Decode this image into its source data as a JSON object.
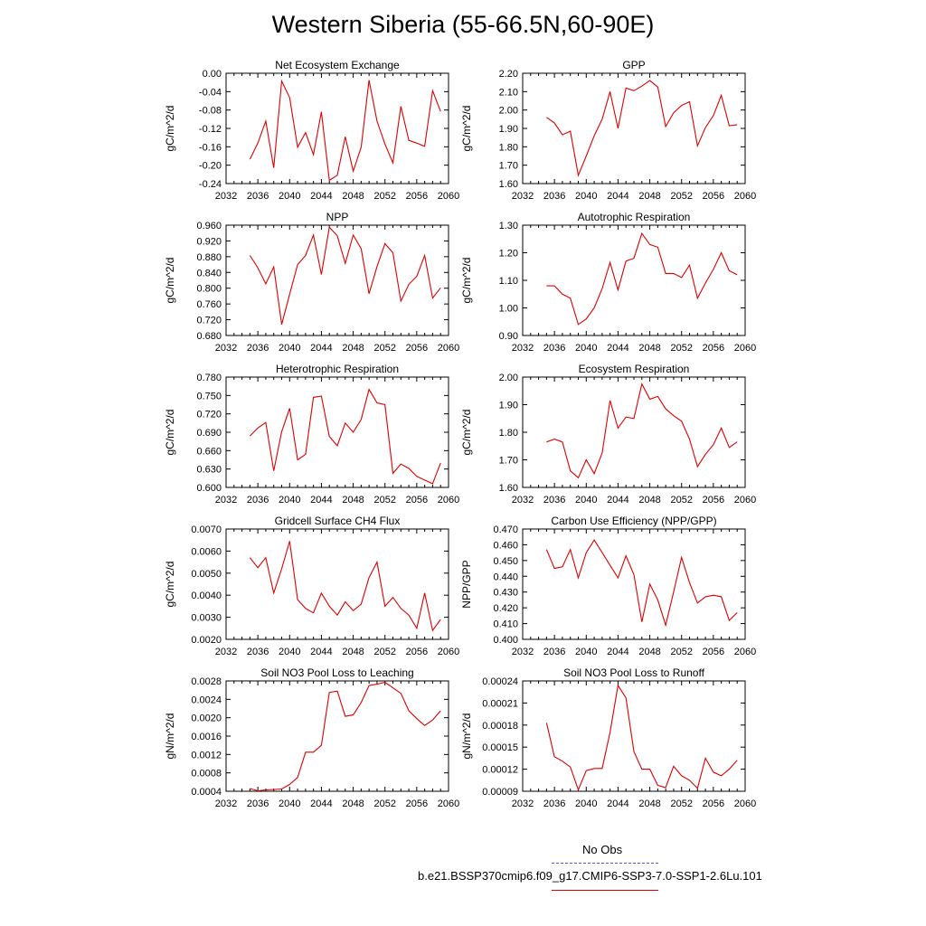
{
  "title": "Western Siberia (55-66.5N,60-90E)",
  "legend": {
    "obs_label": "No Obs",
    "obs_color": "#5555cc",
    "model_label": "b.e21.BSSP370cmip6.f09_g17.CMIP6-SSP3-7.0-SSP1-2.6Lu.101",
    "model_color": "#dd0000"
  },
  "chart_data": [
    {
      "type": "line",
      "title": "Net Ecosystem Exchange",
      "ylabel": "gC/m^2/d",
      "xlim": [
        2032,
        2060
      ],
      "ylim": [
        -0.24,
        0.0
      ],
      "yticks": [
        "0.00",
        "-0.04",
        "-0.08",
        "-0.12",
        "-0.16",
        "-0.20",
        "-0.24"
      ],
      "xticks": [
        "2032",
        "2036",
        "2040",
        "2044",
        "2048",
        "2052",
        "2056",
        "2060"
      ],
      "x": [
        2035,
        2036,
        2037,
        2038,
        2039,
        2040,
        2041,
        2042,
        2043,
        2044,
        2045,
        2046,
        2047,
        2048,
        2049,
        2050,
        2051,
        2052,
        2053,
        2054,
        2055,
        2056,
        2057,
        2058,
        2059
      ],
      "values": [
        -0.187,
        -0.152,
        -0.104,
        -0.206,
        -0.017,
        -0.053,
        -0.161,
        -0.129,
        -0.177,
        -0.084,
        -0.233,
        -0.222,
        -0.138,
        -0.213,
        -0.161,
        -0.015,
        -0.104,
        -0.154,
        -0.195,
        -0.072,
        -0.146,
        -0.152,
        -0.159,
        -0.038,
        -0.083
      ]
    },
    {
      "type": "line",
      "title": "GPP",
      "ylabel": "gC/m^2/d",
      "xlim": [
        2032,
        2060
      ],
      "ylim": [
        1.6,
        2.2
      ],
      "yticks": [
        "2.20",
        "2.10",
        "2.00",
        "1.90",
        "1.80",
        "1.70",
        "1.60"
      ],
      "xticks": [
        "2032",
        "2036",
        "2040",
        "2044",
        "2048",
        "2052",
        "2056",
        "2060"
      ],
      "x": [
        2035,
        2036,
        2037,
        2038,
        2039,
        2040,
        2041,
        2042,
        2043,
        2044,
        2045,
        2046,
        2047,
        2048,
        2049,
        2050,
        2051,
        2052,
        2053,
        2054,
        2055,
        2056,
        2057,
        2058,
        2059
      ],
      "values": [
        1.96,
        1.93,
        1.865,
        1.885,
        1.645,
        1.75,
        1.86,
        1.95,
        2.1,
        1.9,
        2.12,
        2.105,
        2.13,
        2.16,
        2.125,
        1.91,
        1.985,
        2.025,
        2.045,
        1.805,
        1.905,
        1.97,
        2.08,
        1.915,
        1.92
      ]
    },
    {
      "type": "line",
      "title": "NPP",
      "ylabel": "gC/m^2/d",
      "xlim": [
        2032,
        2060
      ],
      "ylim": [
        0.68,
        0.96
      ],
      "yticks": [
        "0.960",
        "0.920",
        "0.880",
        "0.840",
        "0.800",
        "0.760",
        "0.720",
        "0.680"
      ],
      "xticks": [
        "2032",
        "2036",
        "2040",
        "2044",
        "2048",
        "2052",
        "2056",
        "2060"
      ],
      "x": [
        2035,
        2036,
        2037,
        2038,
        2039,
        2040,
        2041,
        2042,
        2043,
        2044,
        2045,
        2046,
        2047,
        2048,
        2049,
        2050,
        2051,
        2052,
        2053,
        2054,
        2055,
        2056,
        2057,
        2058,
        2059
      ],
      "values": [
        0.883,
        0.852,
        0.811,
        0.854,
        0.708,
        0.785,
        0.86,
        0.883,
        0.935,
        0.835,
        0.955,
        0.933,
        0.863,
        0.935,
        0.9,
        0.786,
        0.855,
        0.913,
        0.89,
        0.767,
        0.81,
        0.83,
        0.883,
        0.775,
        0.801
      ]
    },
    {
      "type": "line",
      "title": "Autotrophic Respiration",
      "ylabel": "gC/m^2/d",
      "xlim": [
        2032,
        2060
      ],
      "ylim": [
        0.9,
        1.3
      ],
      "yticks": [
        "1.30",
        "1.20",
        "1.10",
        "1.00",
        "0.90"
      ],
      "xticks": [
        "2032",
        "2036",
        "2040",
        "2044",
        "2048",
        "2052",
        "2056",
        "2060"
      ],
      "x": [
        2035,
        2036,
        2037,
        2038,
        2039,
        2040,
        2041,
        2042,
        2043,
        2044,
        2045,
        2046,
        2047,
        2048,
        2049,
        2050,
        2051,
        2052,
        2053,
        2054,
        2055,
        2056,
        2057,
        2058,
        2059
      ],
      "values": [
        1.08,
        1.08,
        1.05,
        1.035,
        0.94,
        0.96,
        1.0,
        1.07,
        1.165,
        1.065,
        1.17,
        1.18,
        1.27,
        1.23,
        1.22,
        1.125,
        1.125,
        1.11,
        1.155,
        1.035,
        1.09,
        1.14,
        1.2,
        1.135,
        1.12
      ]
    },
    {
      "type": "line",
      "title": "Heterotrophic Respiration",
      "ylabel": "gC/m^2/d",
      "xlim": [
        2032,
        2060
      ],
      "ylim": [
        0.6,
        0.78
      ],
      "yticks": [
        "0.780",
        "0.750",
        "0.720",
        "0.690",
        "0.660",
        "0.630",
        "0.600"
      ],
      "xticks": [
        "2032",
        "2036",
        "2040",
        "2044",
        "2048",
        "2052",
        "2056",
        "2060"
      ],
      "x": [
        2035,
        2036,
        2037,
        2038,
        2039,
        2040,
        2041,
        2042,
        2043,
        2044,
        2045,
        2046,
        2047,
        2048,
        2049,
        2050,
        2051,
        2052,
        2053,
        2054,
        2055,
        2056,
        2057,
        2058,
        2059
      ],
      "values": [
        0.684,
        0.697,
        0.706,
        0.627,
        0.691,
        0.729,
        0.645,
        0.654,
        0.747,
        0.749,
        0.683,
        0.668,
        0.705,
        0.69,
        0.711,
        0.76,
        0.738,
        0.735,
        0.623,
        0.638,
        0.631,
        0.618,
        0.612,
        0.606,
        0.64
      ]
    },
    {
      "type": "line",
      "title": "Ecosystem Respiration",
      "ylabel": "gC/m^2/d",
      "xlim": [
        2032,
        2060
      ],
      "ylim": [
        1.6,
        2.0
      ],
      "yticks": [
        "2.00",
        "1.90",
        "1.80",
        "1.70",
        "1.60"
      ],
      "xticks": [
        "2032",
        "2036",
        "2040",
        "2044",
        "2048",
        "2052",
        "2056",
        "2060"
      ],
      "x": [
        2035,
        2036,
        2037,
        2038,
        2039,
        2040,
        2041,
        2042,
        2043,
        2044,
        2045,
        2046,
        2047,
        2048,
        2049,
        2050,
        2051,
        2052,
        2053,
        2054,
        2055,
        2056,
        2057,
        2058,
        2059
      ],
      "values": [
        1.765,
        1.775,
        1.765,
        1.66,
        1.635,
        1.7,
        1.65,
        1.725,
        1.915,
        1.815,
        1.855,
        1.85,
        1.975,
        1.92,
        1.93,
        1.885,
        1.86,
        1.84,
        1.775,
        1.675,
        1.72,
        1.755,
        1.815,
        1.745,
        1.765
      ]
    },
    {
      "type": "line",
      "title": "Gridcell Surface CH4 Flux",
      "ylabel": "gC/m^2/d",
      "xlim": [
        2032,
        2060
      ],
      "ylim": [
        0.002,
        0.007
      ],
      "yticks": [
        "0.0070",
        "0.0060",
        "0.0050",
        "0.0040",
        "0.0030",
        "0.0020"
      ],
      "xticks": [
        "2032",
        "2036",
        "2040",
        "2044",
        "2048",
        "2052",
        "2056",
        "2060"
      ],
      "x": [
        2035,
        2036,
        2037,
        2038,
        2039,
        2040,
        2041,
        2042,
        2043,
        2044,
        2045,
        2046,
        2047,
        2048,
        2049,
        2050,
        2051,
        2052,
        2053,
        2054,
        2055,
        2056,
        2057,
        2058,
        2059
      ],
      "values": [
        0.0057,
        0.00525,
        0.0057,
        0.0041,
        0.0052,
        0.00645,
        0.0038,
        0.0034,
        0.0032,
        0.0041,
        0.0035,
        0.0031,
        0.0037,
        0.0033,
        0.0036,
        0.0048,
        0.0055,
        0.0035,
        0.0039,
        0.0034,
        0.0031,
        0.0025,
        0.0041,
        0.0024,
        0.0029
      ]
    },
    {
      "type": "line",
      "title": "Carbon Use Efficiency (NPP/GPP)",
      "ylabel": "NPP/GPP",
      "xlim": [
        2032,
        2060
      ],
      "ylim": [
        0.4,
        0.47
      ],
      "yticks": [
        "0.470",
        "0.460",
        "0.450",
        "0.440",
        "0.430",
        "0.420",
        "0.410",
        "0.400"
      ],
      "xticks": [
        "2032",
        "2036",
        "2040",
        "2044",
        "2048",
        "2052",
        "2056",
        "2060"
      ],
      "x": [
        2035,
        2036,
        2037,
        2038,
        2039,
        2040,
        2041,
        2042,
        2043,
        2044,
        2045,
        2046,
        2047,
        2048,
        2049,
        2050,
        2051,
        2052,
        2053,
        2054,
        2055,
        2056,
        2057,
        2058,
        2059
      ],
      "values": [
        0.457,
        0.445,
        0.446,
        0.457,
        0.439,
        0.455,
        0.463,
        0.455,
        0.447,
        0.439,
        0.453,
        0.441,
        0.411,
        0.435,
        0.425,
        0.409,
        0.43,
        0.452,
        0.436,
        0.423,
        0.427,
        0.428,
        0.427,
        0.412,
        0.417
      ]
    },
    {
      "type": "line",
      "title": "Soil NO3 Pool Loss to Leaching",
      "ylabel": "gN/m^2/d",
      "xlim": [
        2032,
        2060
      ],
      "ylim": [
        0.0004,
        0.0028
      ],
      "yticks": [
        "0.0028",
        "0.0024",
        "0.0020",
        "0.0016",
        "0.0012",
        "0.0008",
        "0.0004"
      ],
      "xticks": [
        "2032",
        "2036",
        "2040",
        "2044",
        "2048",
        "2052",
        "2056",
        "2060"
      ],
      "x": [
        2035,
        2036,
        2037,
        2038,
        2039,
        2040,
        2041,
        2042,
        2043,
        2044,
        2045,
        2046,
        2047,
        2048,
        2049,
        2050,
        2051,
        2052,
        2053,
        2054,
        2055,
        2056,
        2057,
        2058,
        2059
      ],
      "values": [
        0.00046,
        0.00041,
        0.00043,
        0.00044,
        0.00045,
        0.00055,
        0.0007,
        0.00125,
        0.00125,
        0.0014,
        0.00255,
        0.00258,
        0.00203,
        0.00206,
        0.00233,
        0.0027,
        0.00273,
        0.00277,
        0.00265,
        0.00253,
        0.00215,
        0.00198,
        0.00183,
        0.00195,
        0.00215
      ]
    },
    {
      "type": "line",
      "title": "Soil NO3 Pool Loss to Runoff",
      "ylabel": "gN/m^2/d",
      "xlim": [
        2032,
        2060
      ],
      "ylim": [
        9e-05,
        0.00024
      ],
      "yticks": [
        "0.00024",
        "0.00021",
        "0.00018",
        "0.00015",
        "0.00012",
        "0.00009"
      ],
      "xticks": [
        "2032",
        "2036",
        "2040",
        "2044",
        "2048",
        "2052",
        "2056",
        "2060"
      ],
      "x": [
        2035,
        2036,
        2037,
        2038,
        2039,
        2040,
        2041,
        2042,
        2043,
        2044,
        2045,
        2046,
        2047,
        2048,
        2049,
        2050,
        2051,
        2052,
        2053,
        2054,
        2055,
        2056,
        2057,
        2058,
        2059
      ],
      "values": [
        0.000183,
        0.000137,
        0.000131,
        0.000123,
        9.2e-05,
        0.000118,
        0.000121,
        0.000121,
        0.00017,
        0.000234,
        0.000217,
        0.000144,
        0.00012,
        0.00012,
        9.8e-05,
        9.5e-05,
        0.000124,
        0.000111,
        0.000105,
        9.4e-05,
        0.000135,
        0.000116,
        0.000111,
        0.00012,
        0.000132
      ]
    }
  ]
}
